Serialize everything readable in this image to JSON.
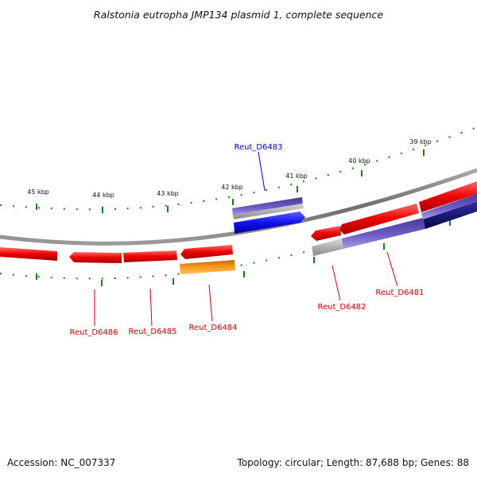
{
  "title": "Ralstonia eutropha JMP134 plasmid 1, complete sequence",
  "accession": "Accession: NC_007337",
  "summary": "Topology: circular; Length: 87,688 bp; Genes: 88",
  "colors": {
    "backbone": "#7a7a7a",
    "tick": "#1a7a1a",
    "gene_red": "#ee0000",
    "gene_orange": "#ff8800",
    "gene_blue": "#1111ee",
    "gene_purple": "#6c5cc8",
    "gene_navy": "#0a0a7a",
    "gene_gray": "#b8b8b8",
    "label_red": "#cc0000",
    "label_blue": "#0000cc"
  },
  "scale_labels": [
    "45 kbp",
    "44 kbp",
    "43 kbp",
    "42 kbp",
    "41 kbp",
    "40 kbp",
    "39 kbp"
  ],
  "gene_labels": [
    {
      "name": "Reut_D6483",
      "color": "blue"
    },
    {
      "name": "Reut_D6486",
      "color": "red"
    },
    {
      "name": "Reut_D6485",
      "color": "red"
    },
    {
      "name": "Reut_D6484",
      "color": "red"
    },
    {
      "name": "Reut_D6482",
      "color": "red"
    },
    {
      "name": "Reut_D6481",
      "color": "red"
    }
  ]
}
